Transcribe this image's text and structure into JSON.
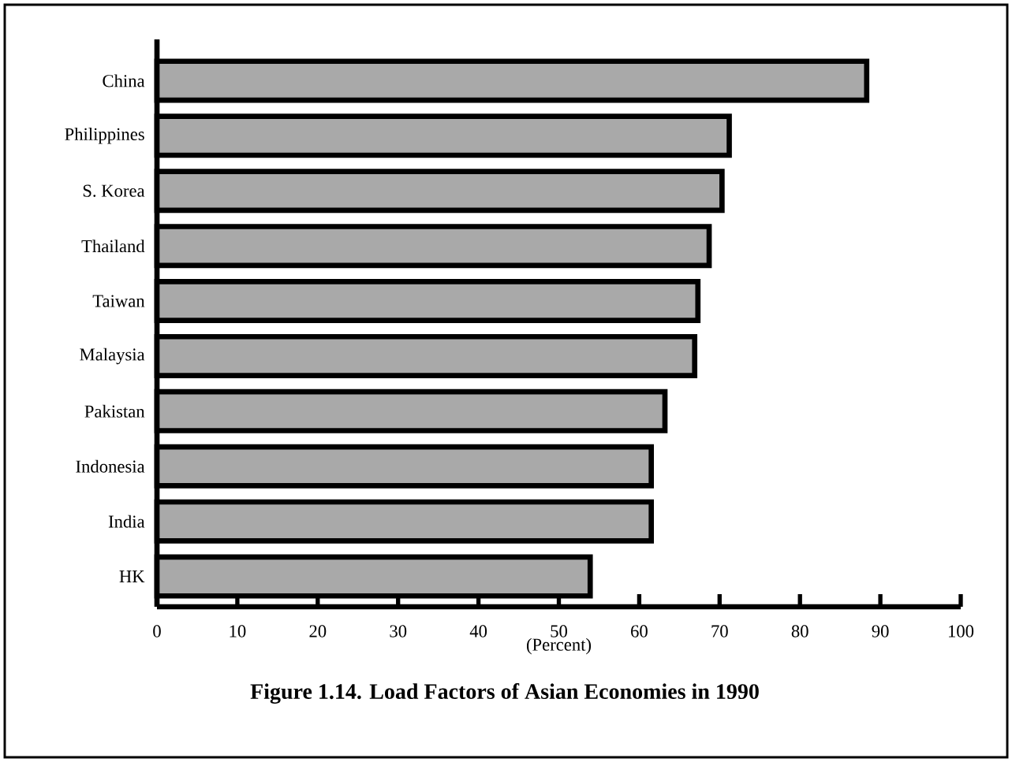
{
  "chart_data": {
    "type": "bar",
    "orientation": "horizontal",
    "title": "Figure 1.14. Load Factors of Asian Economies in 1990",
    "xlabel": "(Percent)",
    "categories": [
      "China",
      "Philippines",
      "S. Korea",
      "Thailand",
      "Taiwan",
      "Malaysia",
      "Pakistan",
      "Indonesia",
      "India",
      "HK"
    ],
    "values": [
      88.3,
      71.2,
      70.3,
      68.7,
      67.3,
      66.9,
      63.2,
      61.5,
      61.5,
      53.9
    ],
    "color": "#a9a9a9",
    "xlim": [
      0,
      100
    ],
    "xticks": [
      0,
      10,
      20,
      30,
      40,
      50,
      60,
      70,
      80,
      90,
      100
    ],
    "grid": false
  }
}
